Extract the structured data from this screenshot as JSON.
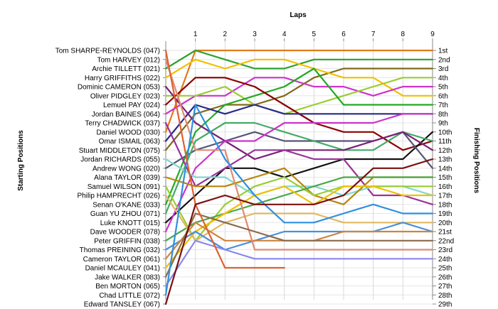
{
  "chart_data": {
    "type": "line",
    "title": "Laps",
    "ylabel_left": "Starting Positions",
    "ylabel_right": "Finishing Positions",
    "laps": [
      0,
      1,
      2,
      3,
      4,
      5,
      6,
      7,
      8,
      9
    ],
    "x_tick_labels": [
      "1",
      "2",
      "3",
      "4",
      "5",
      "6",
      "7",
      "8",
      "9"
    ],
    "left_labels": [
      "Tom SHARPE-REYNOLDS (047)",
      "Tom HARVEY (012)",
      "Archie TILLETT (021)",
      "Harry GRIFFITHS (022)",
      "Dominic CAMERON (053)",
      "Oliver PIDGLEY (023)",
      "Lemuel PAY (024)",
      "Jordan BAINES (064)",
      "Terry CHADWICK (037)",
      "Daniel WOOD (030)",
      "Omar ISMAIL (063)",
      "Stuart MIDDLETON (075)",
      "Jordan RICHARDS (055)",
      "Andrew WONG (020)",
      "Alana TAYLOR (039)",
      "Samuel WILSON (091)",
      "Philip HAMPRECHT (026)",
      "Senan O'KANE (033)",
      "Guan YU ZHOU (071)",
      "Luke KNOTT (015)",
      "Dave WOODER (078)",
      "Peter GRIFFIN (038)",
      "Thomas PREINING (032)",
      "Cameron TAYLOR (061)",
      "Daniel MCAULEY (041)",
      "Jake WALKER (083)",
      "Ben MORTON (065)",
      "Chad LITTLE (072)",
      "Edward TANSLEY (067)"
    ],
    "right_labels": [
      "1st",
      "2nd",
      "3rd",
      "4th",
      "5th",
      "6th",
      "7th",
      "8th",
      "9th",
      "10th",
      "11th",
      "12th",
      "13th",
      "14th",
      "15th",
      "16th",
      "17th",
      "18th",
      "19th",
      "20th",
      "21st",
      "22nd",
      "23rd",
      "24th",
      "25th",
      "26th",
      "27th",
      "28th",
      "29th"
    ],
    "ylim": [
      1,
      29
    ],
    "grid": true,
    "series": [
      {
        "color": "#e07b1a",
        "positions": [
          10,
          1,
          1,
          1,
          1,
          1,
          1,
          1,
          1,
          1
        ]
      },
      {
        "color": "#2ca02c",
        "positions": [
          3,
          1,
          2,
          3,
          3,
          2,
          2,
          2,
          2,
          2
        ]
      },
      {
        "color": "#7f6a1a",
        "positions": [
          12,
          8,
          7,
          7,
          6,
          4,
          3,
          3,
          3,
          3
        ]
      },
      {
        "color": "#f0c000",
        "positions": [
          4,
          2,
          3,
          2,
          2,
          3,
          4,
          4,
          6,
          6
        ]
      },
      {
        "color": "#cc33cc",
        "positions": [
          8,
          6,
          6,
          4,
          4,
          5,
          5,
          6,
          5,
          5
        ]
      },
      {
        "color": "#9acd32",
        "positions": [
          6,
          6,
          5,
          7,
          8,
          7,
          6,
          5,
          4,
          4
        ]
      },
      {
        "color": "#22aa22",
        "positions": [
          18,
          10,
          7,
          6,
          5,
          3,
          7,
          7,
          7,
          7
        ]
      },
      {
        "color": "#8b0000",
        "positions": [
          7,
          4,
          4,
          5,
          7,
          9,
          10,
          10,
          12,
          11
        ]
      },
      {
        "color": "#2a2a8a",
        "positions": [
          11,
          7,
          8,
          7,
          8,
          8,
          8,
          8,
          8,
          8
        ]
      },
      {
        "color": "#111111",
        "positions": [
          20,
          17,
          14,
          14,
          15,
          14,
          13,
          13,
          13,
          10
        ]
      },
      {
        "color": "#555577",
        "positions": [
          14,
          12,
          11,
          10,
          11,
          11,
          11,
          11,
          10,
          14
        ]
      },
      {
        "color": "#44aa66",
        "positions": [
          19,
          11,
          9,
          9,
          10,
          11,
          12,
          12,
          10,
          11
        ]
      },
      {
        "color": "#7a1f7a",
        "positions": [
          5,
          9,
          11,
          13,
          12,
          12,
          12,
          11,
          10,
          12
        ]
      },
      {
        "color": "#cc33cc",
        "positions": [
          21,
          14,
          11,
          11,
          9,
          9,
          9,
          9,
          8,
          8
        ]
      },
      {
        "color": "#993399",
        "positions": [
          9,
          16,
          14,
          12,
          12,
          13,
          13,
          17,
          17,
          18
        ]
      },
      {
        "color": "#7fd7d0",
        "positions": [
          13,
          15,
          15,
          17,
          16,
          16,
          17,
          16,
          16,
          17
        ]
      },
      {
        "color": "#b8860b",
        "positions": [
          15,
          16,
          16,
          15,
          14,
          17,
          18,
          15,
          15,
          15
        ]
      },
      {
        "color": "#9acd32",
        "positions": [
          16,
          22,
          18,
          16,
          15,
          17,
          16,
          16,
          16,
          16
        ]
      },
      {
        "color": "#4aa84a",
        "positions": [
          22,
          20,
          19,
          18,
          17,
          16,
          15,
          15,
          15,
          15
        ]
      },
      {
        "color": "#f0c000",
        "positions": [
          25,
          21,
          19,
          17,
          16,
          18,
          16,
          16,
          17,
          17
        ]
      },
      {
        "color": "#e0b860",
        "positions": [
          17,
          22,
          20,
          19,
          19,
          19,
          20,
          20,
          20,
          20
        ]
      },
      {
        "color": "#4a90d9",
        "positions": [
          23,
          21,
          23,
          22,
          21,
          21,
          21,
          21,
          20,
          21
        ]
      },
      {
        "color": "#cd853f",
        "positions": [
          24,
          20,
          22,
          22,
          22,
          22,
          21,
          21,
          21,
          21
        ]
      },
      {
        "color": "#e08a70",
        "positions": [
          2,
          12,
          12,
          23,
          23,
          23,
          23,
          23,
          23,
          23
        ]
      },
      {
        "color": "#8b6b4a",
        "positions": [
          26,
          19,
          20,
          21,
          22,
          22,
          22,
          22,
          22,
          22
        ]
      },
      {
        "color": "#8888ee",
        "positions": [
          27,
          22,
          23,
          24,
          24,
          24,
          24,
          24,
          24,
          24
        ]
      },
      {
        "color": "#2f8fe0",
        "positions": [
          28,
          7,
          13,
          17,
          20,
          20,
          19,
          18,
          19,
          19
        ]
      },
      {
        "color": "#e06030",
        "positions": [
          1,
          18,
          25,
          25,
          25
        ]
      },
      {
        "color": "#7a1010",
        "positions": [
          29,
          18,
          17,
          18,
          18,
          18,
          17,
          14,
          14,
          13
        ]
      }
    ]
  }
}
